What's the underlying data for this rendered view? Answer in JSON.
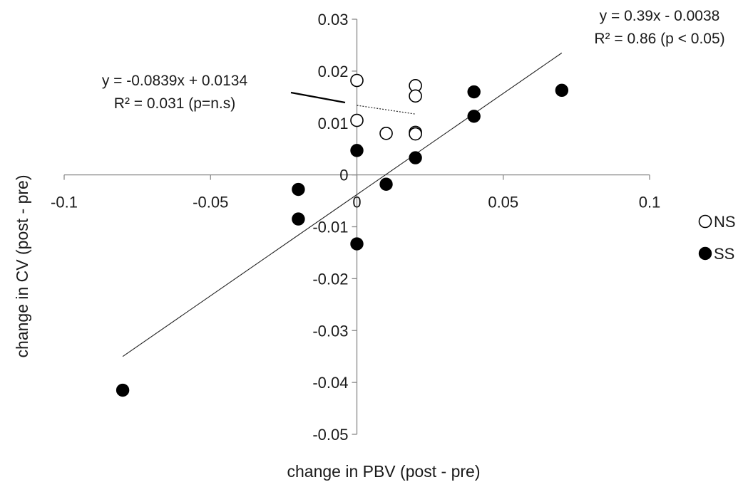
{
  "chart_data": {
    "type": "scatter",
    "title": "",
    "xlabel": "change in PBV (post - pre)",
    "ylabel": "change in CV (post - pre)",
    "xlim": [
      -0.1,
      0.1
    ],
    "ylim": [
      -0.05,
      0.03
    ],
    "x_ticks": [
      -0.1,
      -0.05,
      0,
      0.05,
      0.1
    ],
    "y_ticks": [
      -0.05,
      -0.04,
      -0.03,
      -0.02,
      -0.01,
      0,
      0.01,
      0.02,
      0.03
    ],
    "x_tick_labels": [
      "-0.1",
      "-0.05",
      "0",
      "0.05",
      "0.1"
    ],
    "y_tick_labels": [
      "-0.05",
      "-0.04",
      "-0.03",
      "-0.02",
      "-0.01",
      "0",
      "0.01",
      "0.02",
      "0.03"
    ],
    "grid": false,
    "legend_position": "right",
    "series": [
      {
        "name": "NS",
        "marker": "open-circle",
        "color": "#000000",
        "points": [
          {
            "x": 0,
            "y": 0.0182
          },
          {
            "x": 0,
            "y": 0.0105
          },
          {
            "x": 0.01,
            "y": 0.008
          },
          {
            "x": 0.02,
            "y": 0.0172
          },
          {
            "x": 0.02,
            "y": 0.0152
          },
          {
            "x": 0.02,
            "y": 0.0082
          },
          {
            "x": 0.02,
            "y": 0.0079
          }
        ],
        "trendline": {
          "slope": -0.0839,
          "intercept": 0.0134,
          "x_range": [
            0,
            0.02
          ],
          "style": "dotted",
          "equation": "y = -0.0839x + 0.0134",
          "r2": "R² = 0.031 (p=n.s)"
        }
      },
      {
        "name": "SS",
        "marker": "filled-circle",
        "color": "#000000",
        "points": [
          {
            "x": -0.08,
            "y": -0.0415
          },
          {
            "x": -0.02,
            "y": -0.0028
          },
          {
            "x": -0.02,
            "y": -0.0085
          },
          {
            "x": 0,
            "y": -0.0133
          },
          {
            "x": 0,
            "y": 0.0047
          },
          {
            "x": 0.01,
            "y": -0.0018
          },
          {
            "x": 0.02,
            "y": 0.0033
          },
          {
            "x": 0.04,
            "y": 0.016
          },
          {
            "x": 0.04,
            "y": 0.0113
          },
          {
            "x": 0.07,
            "y": 0.0163
          }
        ],
        "trendline": {
          "slope": 0.39,
          "intercept": -0.0038,
          "x_range": [
            -0.08,
            0.07
          ],
          "style": "solid",
          "equation": "y = 0.39x - 0.0038",
          "r2": "R² = 0.86 (p < 0.05)"
        }
      }
    ]
  }
}
